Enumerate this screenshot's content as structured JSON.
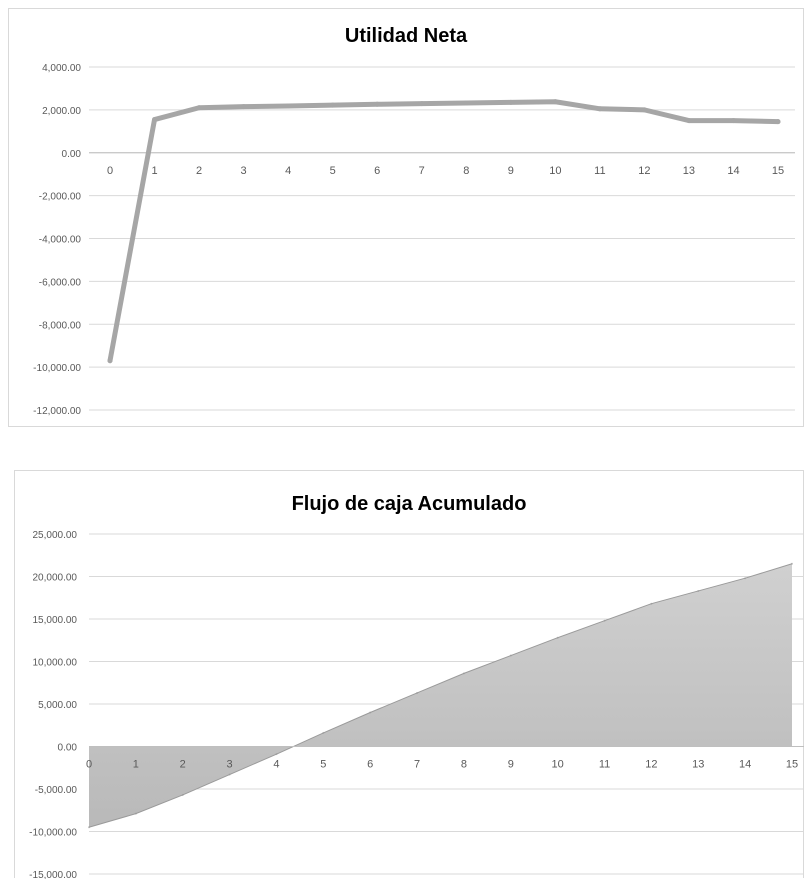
{
  "chart_data": [
    {
      "type": "line",
      "title": "Utilidad Neta",
      "categories": [
        "0",
        "1",
        "2",
        "3",
        "4",
        "5",
        "6",
        "7",
        "8",
        "9",
        "10",
        "11",
        "12",
        "13",
        "14",
        "15"
      ],
      "series": [
        {
          "values": [
            -9700,
            1550,
            2100,
            2150,
            2180,
            2220,
            2260,
            2290,
            2320,
            2350,
            2380,
            2050,
            2000,
            1500,
            1500,
            1450
          ]
        }
      ],
      "ylim": [
        -12000,
        4000
      ],
      "y_ticks": [
        4000,
        2000,
        0,
        -2000,
        -4000,
        -6000,
        -8000,
        -10000,
        -12000
      ],
      "y_tick_labels": [
        "4,000.00",
        "2,000.00",
        "0.00",
        "-2,000.00",
        "-4,000.00",
        "-6,000.00",
        "-8,000.00",
        "-10,000.00",
        "-12,000.00"
      ],
      "grid": true,
      "xlabel": "",
      "ylabel": "",
      "colors": {
        "line": "#a6a6a6",
        "grid": "#d9d9d9",
        "axis": "#bfbfbf"
      }
    },
    {
      "type": "area",
      "title": "Flujo de caja Acumulado",
      "categories": [
        "0",
        "1",
        "2",
        "3",
        "4",
        "5",
        "6",
        "7",
        "8",
        "9",
        "10",
        "11",
        "12",
        "13",
        "14",
        "15"
      ],
      "series": [
        {
          "values": [
            -9500,
            -7900,
            -5700,
            -3300,
            -900,
            1600,
            4000,
            6300,
            8600,
            10700,
            12800,
            14800,
            16800,
            18300,
            19800,
            21500
          ]
        }
      ],
      "ylim": [
        -15000,
        25000
      ],
      "y_ticks": [
        25000,
        20000,
        15000,
        10000,
        5000,
        0,
        -5000,
        -10000,
        -15000
      ],
      "y_tick_labels": [
        "25,000.00",
        "20,000.00",
        "15,000.00",
        "10,000.00",
        "5,000.00",
        "0.00",
        "-5,000.00",
        "-10,000.00",
        "-15,000.00"
      ],
      "grid": true,
      "xlabel": "",
      "ylabel": "",
      "colors": {
        "fill_top": "#d0d0d0",
        "fill_bottom": "#b9b9b9",
        "stroke": "#9a9a9a",
        "grid": "#d9d9d9",
        "axis": "#bfbfbf"
      }
    }
  ]
}
